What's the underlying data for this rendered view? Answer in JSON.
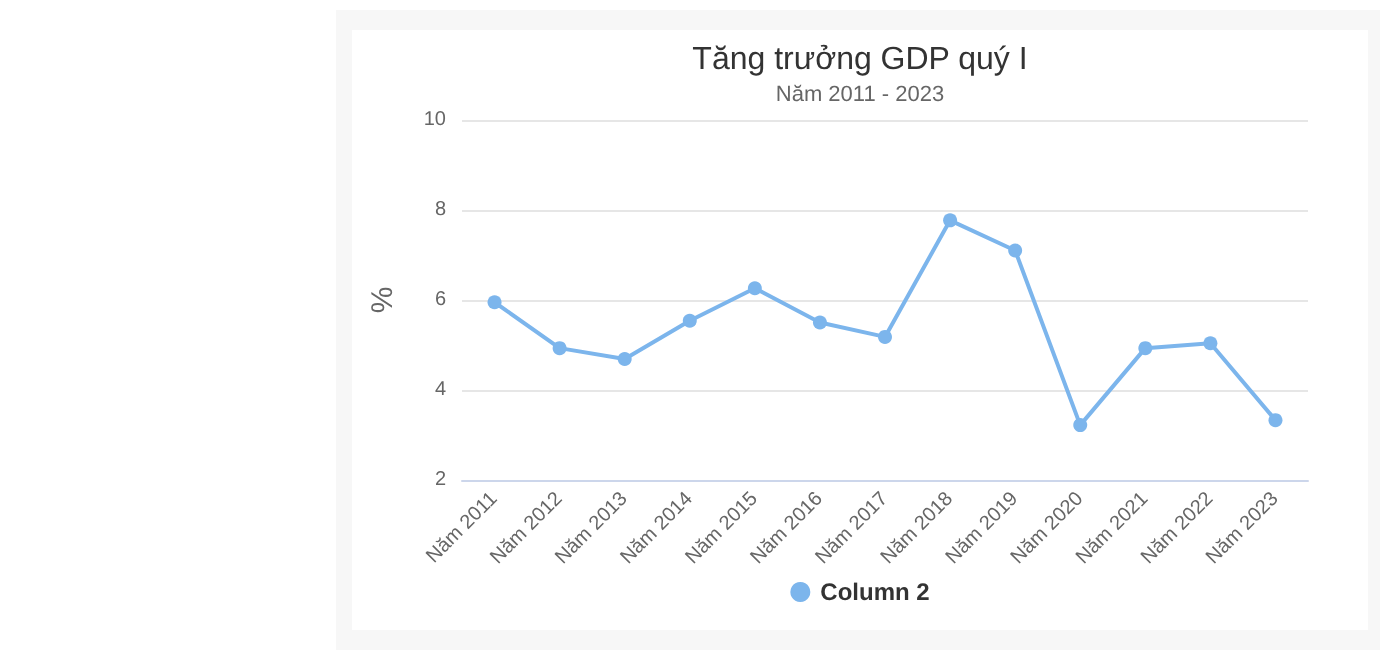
{
  "chart_data": {
    "type": "line",
    "title": "Tăng trưởng GDP quý I",
    "subtitle": "Năm 2011 - 2023",
    "ylabel": "%",
    "categories": [
      "Năm 2011",
      "Năm 2012",
      "Năm 2013",
      "Năm 2014",
      "Năm 2015",
      "Năm 2016",
      "Năm 2017",
      "Năm 2018",
      "Năm 2019",
      "Năm 2020",
      "Năm 2021",
      "Năm 2022",
      "Năm 2023"
    ],
    "series": [
      {
        "name": "Column 2",
        "color": "#7cb5ec",
        "values": [
          5.95,
          4.93,
          4.69,
          5.54,
          6.26,
          5.5,
          5.18,
          7.77,
          7.1,
          3.22,
          4.93,
          5.04,
          3.33
        ]
      }
    ],
    "ylim": [
      2,
      10
    ],
    "yticks": [
      2,
      4,
      6,
      8,
      10
    ],
    "grid": "y",
    "legend": "bottom",
    "marker": "circle",
    "line_style": "solid"
  }
}
